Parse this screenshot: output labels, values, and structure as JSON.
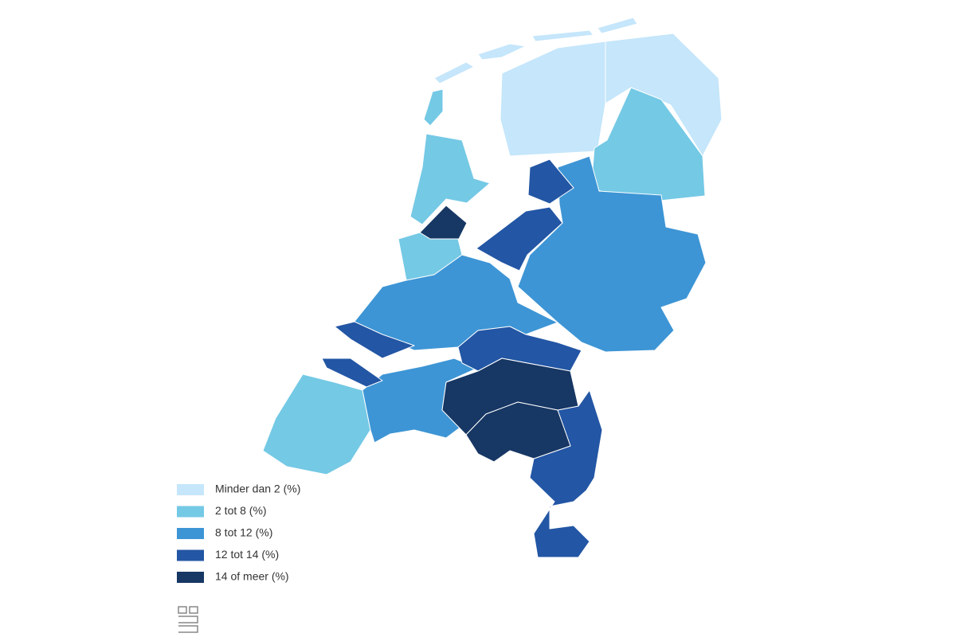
{
  "legend": {
    "items": [
      {
        "label": "Minder dan 2 (%)",
        "color": "#c5e6fb"
      },
      {
        "label": "2 tot 8 (%)",
        "color": "#74c9e5"
      },
      {
        "label": "8 tot 12 (%)",
        "color": "#3d95d5"
      },
      {
        "label": "12 tot 14 (%)",
        "color": "#2356a4"
      },
      {
        "label": "14 of meer (%)",
        "color": "#173764"
      }
    ]
  }
}
